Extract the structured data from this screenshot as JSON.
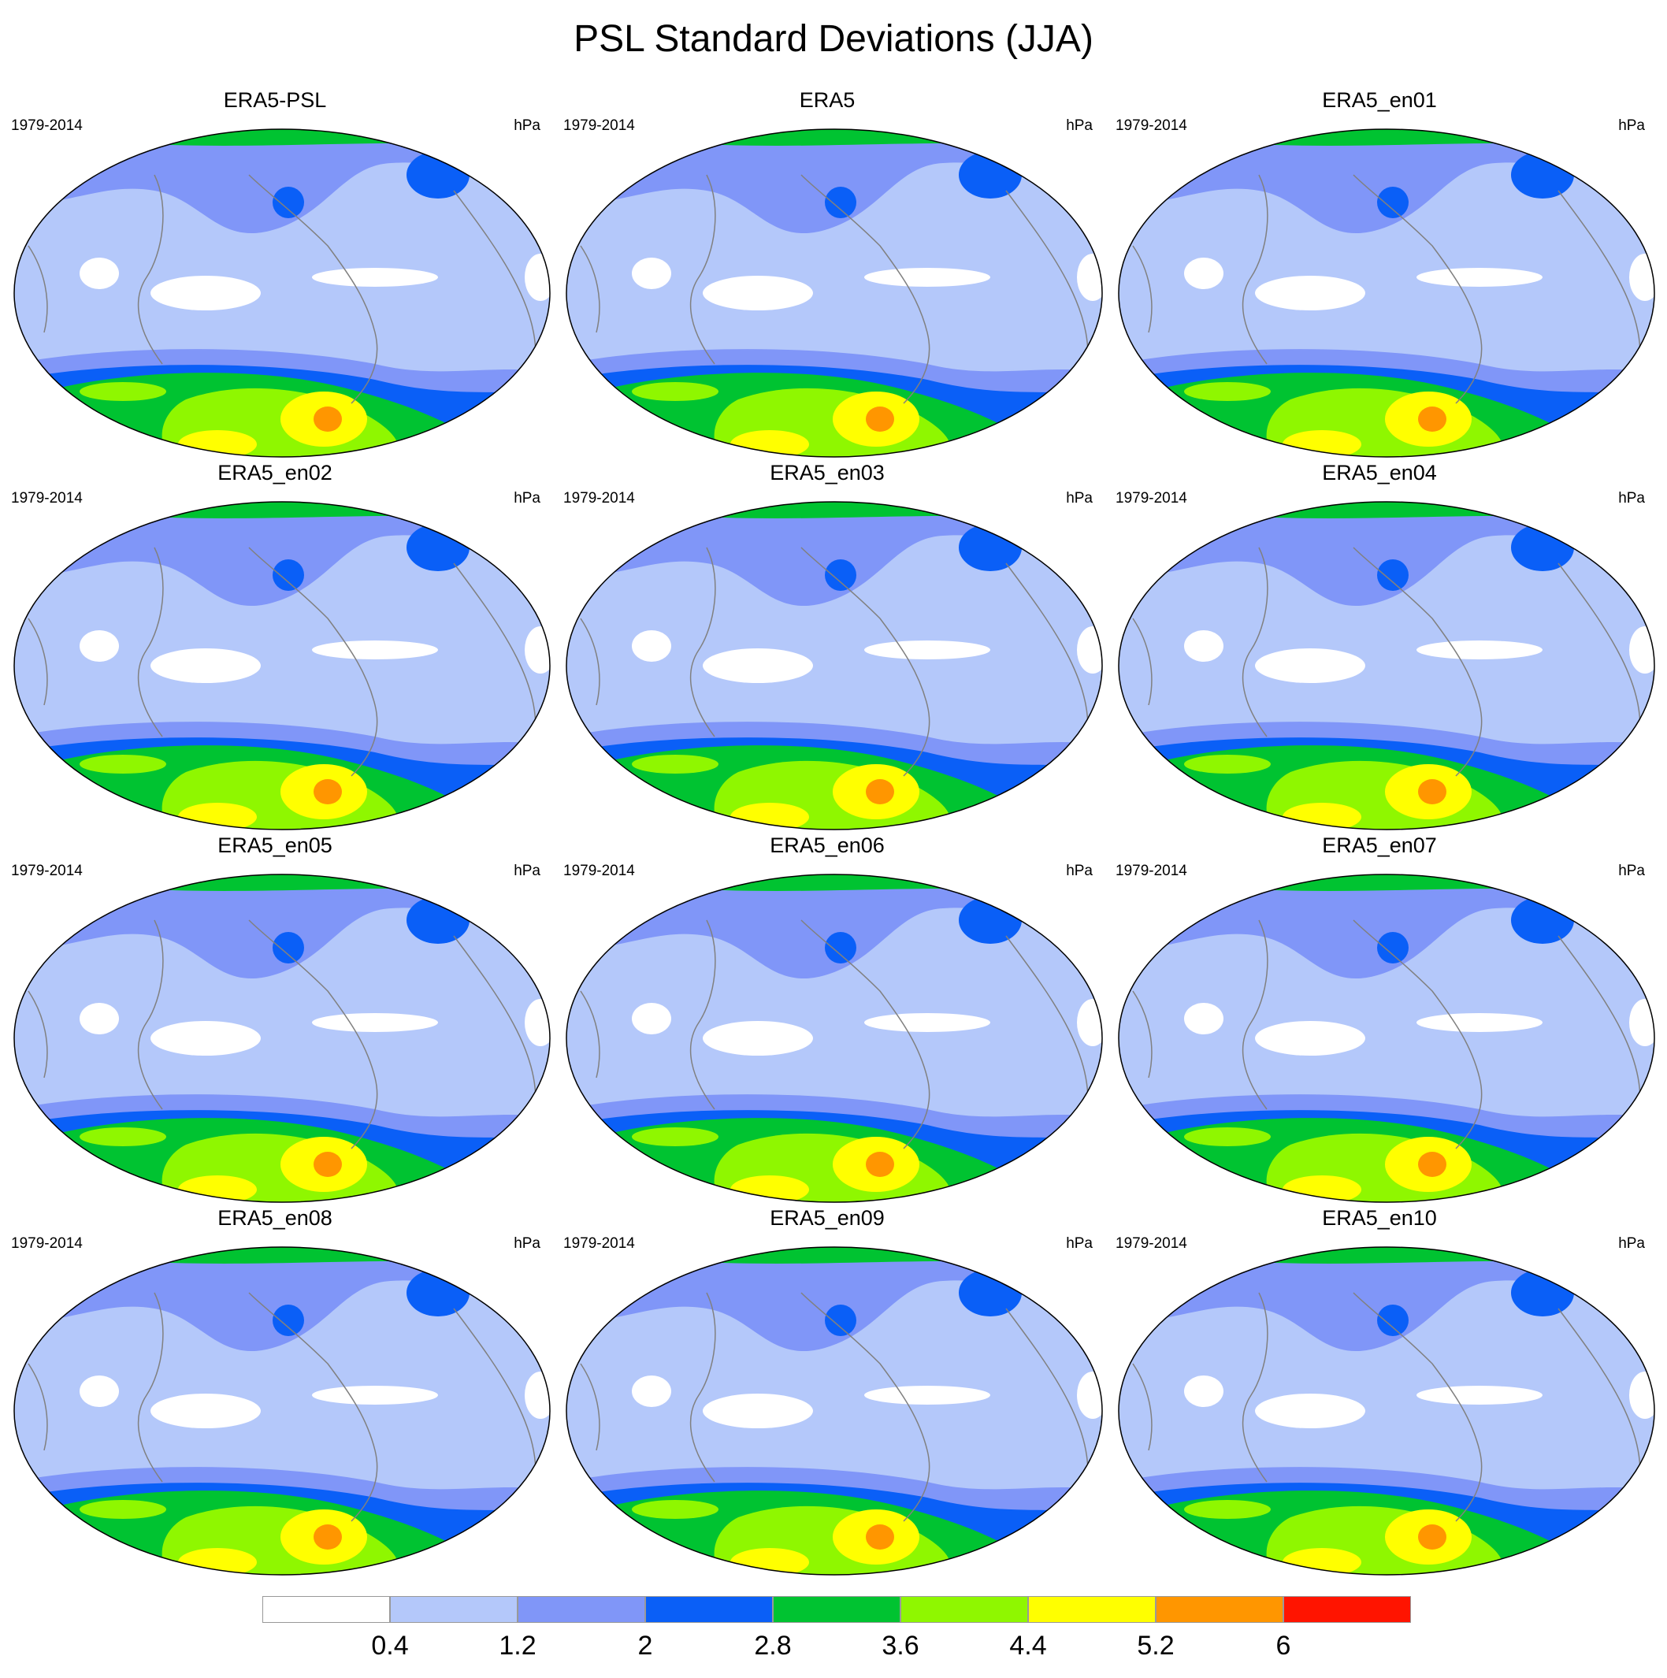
{
  "title": "PSL Standard Deviations (JJA)",
  "panels": [
    {
      "title": "ERA5-PSL"
    },
    {
      "title": "ERA5"
    },
    {
      "title": "ERA5_en01"
    },
    {
      "title": "ERA5_en02"
    },
    {
      "title": "ERA5_en03"
    },
    {
      "title": "ERA5_en04"
    },
    {
      "title": "ERA5_en05"
    },
    {
      "title": "ERA5_en06"
    },
    {
      "title": "ERA5_en07"
    },
    {
      "title": "ERA5_en08"
    },
    {
      "title": "ERA5_en09"
    },
    {
      "title": "ERA5_en10"
    }
  ],
  "period": "1979-2014",
  "units": "hPa",
  "colorbar": {
    "labels": [
      "0.4",
      "1.2",
      "2",
      "2.8",
      "3.6",
      "4.4",
      "5.2",
      "6"
    ],
    "colors": [
      "#ffffff",
      "#b4c8fa",
      "#8096f8",
      "#0a5ff7",
      "#00c331",
      "#8ff700",
      "#ffff00",
      "#ff9600",
      "#ff1400"
    ]
  }
}
